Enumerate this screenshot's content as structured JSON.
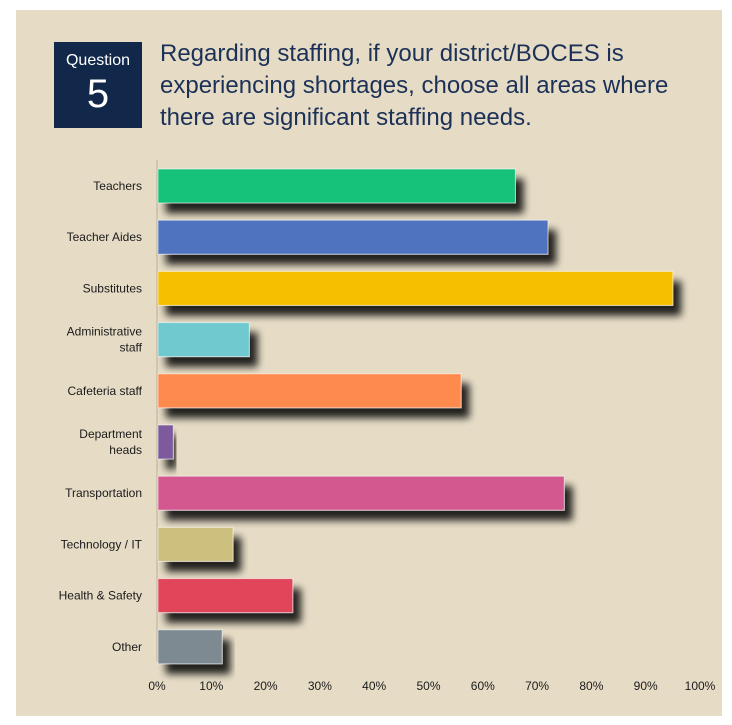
{
  "question": {
    "word": "Question",
    "number": "5",
    "text": "Regarding staffing, if your district/BOCES is experiencing shortages, choose all areas where there are significant staffing needs."
  },
  "chart_data": {
    "type": "bar",
    "orientation": "horizontal",
    "categories": [
      [
        "Teachers"
      ],
      [
        "Teacher Aides"
      ],
      [
        "Substitutes"
      ],
      [
        "Administrative",
        "staff"
      ],
      [
        "Cafeteria staff"
      ],
      [
        "Department",
        "heads"
      ],
      [
        "Transportation"
      ],
      [
        "Technology / IT"
      ],
      [
        "Health & Safety"
      ],
      [
        "Other"
      ]
    ],
    "values": [
      66,
      72,
      95,
      17,
      56,
      3,
      75,
      14,
      25,
      12
    ],
    "colors": [
      "#19c27a",
      "#4f73bf",
      "#f6c000",
      "#6fc9cf",
      "#ff8a4d",
      "#7d5a9b",
      "#d3588f",
      "#cdbf7d",
      "#e0445a",
      "#7d8a92"
    ],
    "x_ticks": [
      "0%",
      "10%",
      "20%",
      "30%",
      "40%",
      "50%",
      "60%",
      "70%",
      "80%",
      "90%",
      "100%"
    ],
    "xlim": [
      0,
      100
    ],
    "grid": false,
    "legend": "none"
  }
}
